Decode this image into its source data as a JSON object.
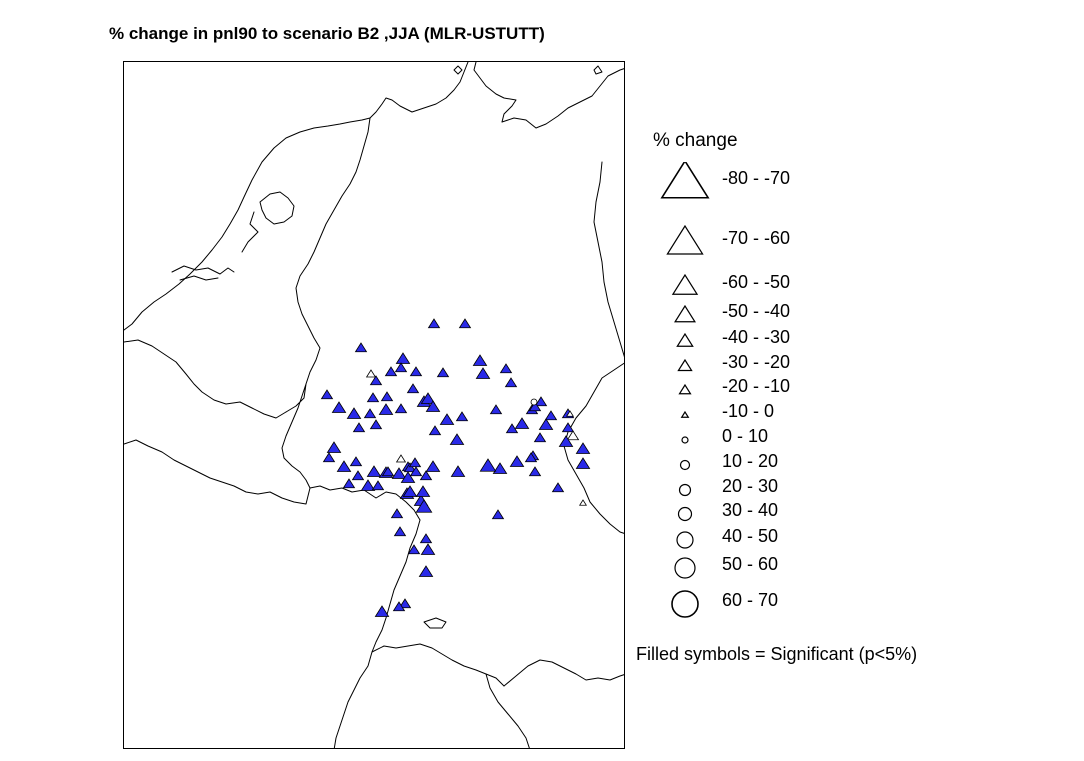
{
  "title": "% change in pnl90 to scenario B2 ,JJA (MLR-USTUTT)",
  "legend": {
    "title": "% change",
    "items": [
      {
        "label": "-80 - -70",
        "shape": "triangle"
      },
      {
        "label": "-70 - -60",
        "shape": "triangle"
      },
      {
        "label": "-60 - -50",
        "shape": "triangle"
      },
      {
        "label": "-50 - -40",
        "shape": "triangle"
      },
      {
        "label": "-40 - -30",
        "shape": "triangle"
      },
      {
        "label": "-30 - -20",
        "shape": "triangle"
      },
      {
        "label": "-20 - -10",
        "shape": "triangle"
      },
      {
        "label": "-10 - 0",
        "shape": "triangle"
      },
      {
        "label": "0 - 10",
        "shape": "circle"
      },
      {
        "label": "10 - 20",
        "shape": "circle"
      },
      {
        "label": "20 - 30",
        "shape": "circle"
      },
      {
        "label": "30 - 40",
        "shape": "circle"
      },
      {
        "label": "40 - 50",
        "shape": "circle"
      },
      {
        "label": "50 - 60",
        "shape": "circle"
      },
      {
        "label": "60 - 70",
        "shape": "circle"
      }
    ],
    "note": "Filled symbols = Significant (p<5%)"
  },
  "colors": {
    "significant_fill": "#2a2ae8",
    "outline": "#000000",
    "border_lines": "#000000"
  }
}
